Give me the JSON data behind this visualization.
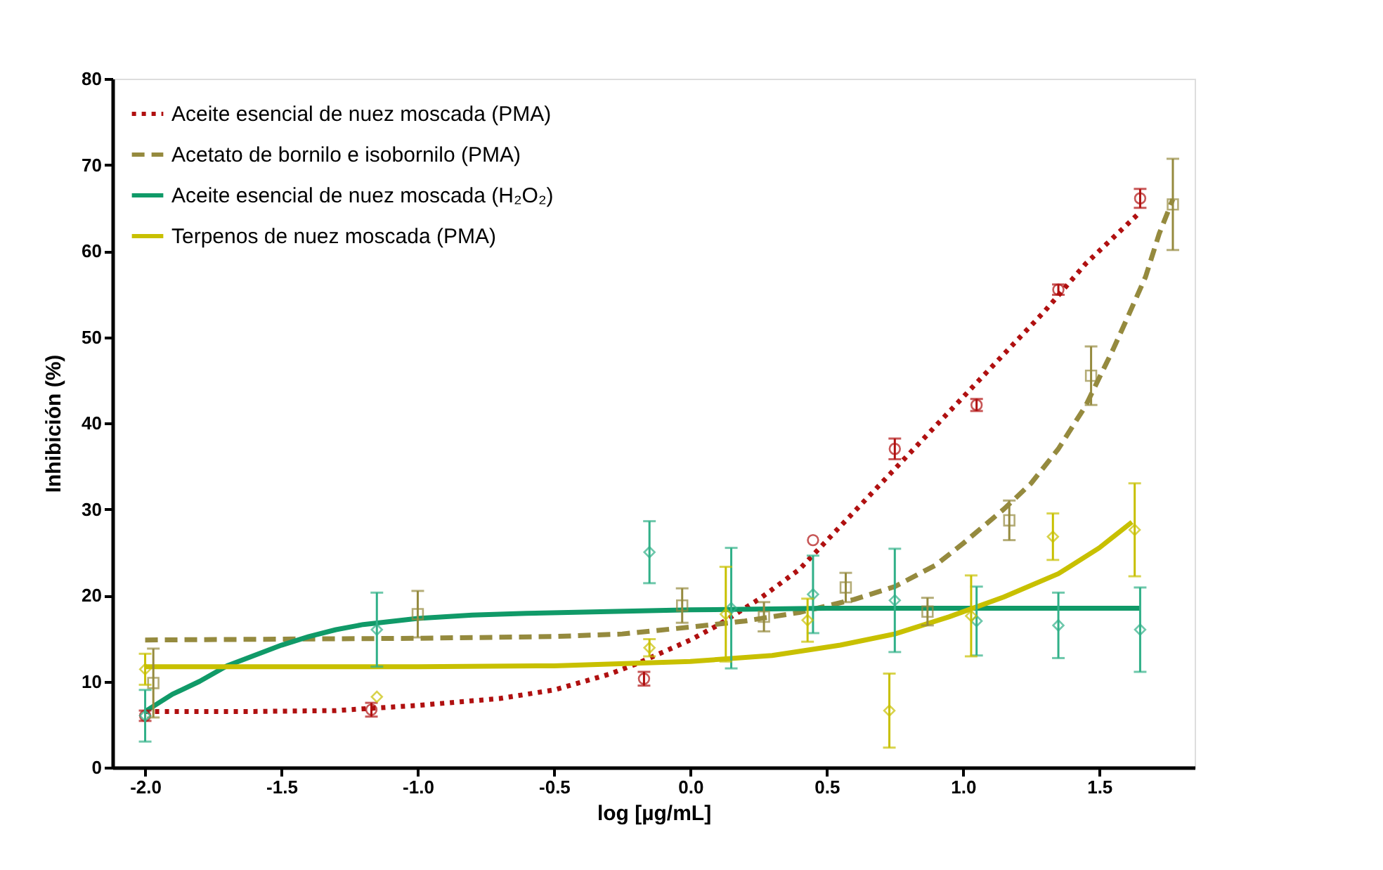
{
  "chart_data": {
    "type": "line",
    "xlabel": "log [µg/mL]",
    "ylabel": "Inhibición (%)",
    "xlim": [
      -2.12,
      1.85
    ],
    "ylim": [
      0,
      80
    ],
    "xticks": [
      {
        "value": -2,
        "label": "-2.0"
      },
      {
        "value": -1.5,
        "label": "-1.5"
      },
      {
        "value": -1,
        "label": "-1.0"
      },
      {
        "value": -0.5,
        "label": "-0.5"
      },
      {
        "value": 0,
        "label": "0.0"
      },
      {
        "value": 0.5,
        "label": "0.5"
      },
      {
        "value": 1,
        "label": "1.0"
      },
      {
        "value": 1.5,
        "label": "1.5"
      }
    ],
    "yticks": [
      0,
      10,
      20,
      30,
      40,
      50,
      60,
      70,
      80
    ],
    "grid": false,
    "legend": "top left",
    "series": [
      {
        "name": "Aceite esencial de nuez moscada (PMA)",
        "type": "line",
        "color": "#b01010",
        "line_style": "dotted",
        "x": [
          -2.0,
          -1.6,
          -1.3,
          -1.0,
          -0.7,
          -0.5,
          -0.3,
          -0.2,
          0.0,
          0.1,
          0.25,
          0.4,
          0.55,
          0.7,
          0.85,
          1.0,
          1.15,
          1.3,
          1.45,
          1.55,
          1.65
        ],
        "values": [
          6.5,
          6.5,
          6.6,
          7.2,
          8.0,
          9.0,
          10.8,
          12.0,
          14.8,
          16.5,
          19.5,
          23.0,
          28.0,
          33.0,
          38.0,
          43.0,
          48.0,
          53.0,
          58.5,
          61.5,
          64.5
        ]
      },
      {
        "name": "Acetato de bornilo e isobornilo (PMA)",
        "type": "line",
        "color": "#958a3e",
        "line_style": "dashed",
        "x": [
          -2.0,
          -1.5,
          -1.0,
          -0.5,
          -0.25,
          0.0,
          0.2,
          0.4,
          0.6,
          0.75,
          0.9,
          1.0,
          1.15,
          1.25,
          1.35,
          1.45,
          1.55,
          1.6,
          1.67,
          1.72,
          1.77
        ],
        "values": [
          14.8,
          14.9,
          15.0,
          15.2,
          15.5,
          16.3,
          17.0,
          18.0,
          19.5,
          21.0,
          23.5,
          26.0,
          30.0,
          33.0,
          37.0,
          42.0,
          48.5,
          52.0,
          57.0,
          62.0,
          66.0
        ]
      },
      {
        "name": "Aceite esencial de nuez moscada (H₂O₂)",
        "type": "line",
        "color": "#109a68",
        "line_style": "solid",
        "x": [
          -2.0,
          -1.9,
          -1.8,
          -1.7,
          -1.6,
          -1.5,
          -1.4,
          -1.3,
          -1.2,
          -1.0,
          -0.8,
          -0.6,
          -0.3,
          0.0,
          0.5,
          1.0,
          1.65
        ],
        "values": [
          6.5,
          8.5,
          10.0,
          11.8,
          13.0,
          14.2,
          15.2,
          16.0,
          16.6,
          17.3,
          17.7,
          17.9,
          18.1,
          18.3,
          18.5,
          18.5,
          18.5
        ]
      },
      {
        "name": "Terpenos de nuez moscada (PMA)",
        "type": "line",
        "color": "#c8c000",
        "line_style": "solid",
        "x": [
          -2.0,
          -1.0,
          -0.5,
          -0.3,
          0.0,
          0.3,
          0.55,
          0.75,
          0.95,
          1.15,
          1.35,
          1.5,
          1.62
        ],
        "values": [
          11.7,
          11.7,
          11.8,
          12.0,
          12.3,
          13.0,
          14.2,
          15.5,
          17.5,
          19.8,
          22.5,
          25.5,
          28.5
        ]
      },
      {
        "type": "scatter",
        "marker": "circle",
        "color": "#b01010",
        "x": [
          -2.0,
          -1.17,
          -0.17,
          0.45,
          0.75,
          1.05,
          1.35,
          1.65
        ],
        "values": [
          6.0,
          6.7,
          10.3,
          26.4,
          37.0,
          42.1,
          55.5,
          66.1
        ],
        "errors": [
          0.6,
          0.8,
          0.8,
          null,
          1.2,
          0.7,
          0.6,
          1.1
        ]
      },
      {
        "type": "scatter",
        "marker": "square",
        "color": "#958a3e",
        "x": [
          -1.97,
          -1.0,
          -0.03,
          0.27,
          0.57,
          0.87,
          1.17,
          1.47,
          1.77
        ],
        "values": [
          9.8,
          17.8,
          18.8,
          17.5,
          20.9,
          18.1,
          28.7,
          45.5,
          65.4
        ],
        "errors": [
          4.0,
          2.7,
          2.0,
          1.7,
          1.7,
          1.6,
          2.3,
          3.4,
          5.3
        ]
      },
      {
        "type": "scatter",
        "marker": "diamond",
        "color": "#30b088",
        "x": [
          -2.0,
          -1.15,
          -0.15,
          0.15,
          0.45,
          0.75,
          1.05,
          1.35,
          1.65
        ],
        "values": [
          6.0,
          16.0,
          25.0,
          18.5,
          20.1,
          19.4,
          17.0,
          16.5,
          16.0
        ],
        "errors": [
          3.0,
          4.3,
          3.6,
          7.0,
          4.5,
          6.0,
          4.0,
          3.8,
          4.9
        ]
      },
      {
        "type": "scatter",
        "marker": "diamond",
        "color": "#c8c000",
        "x": [
          -2.0,
          -1.15,
          -0.15,
          0.13,
          0.43,
          0.73,
          1.03,
          1.33,
          1.63
        ],
        "values": [
          11.4,
          8.2,
          13.9,
          17.8,
          17.1,
          6.6,
          17.6,
          26.8,
          27.6
        ],
        "errors": [
          1.8,
          null,
          1.0,
          5.5,
          2.5,
          4.3,
          4.7,
          2.7,
          5.4
        ]
      }
    ]
  }
}
